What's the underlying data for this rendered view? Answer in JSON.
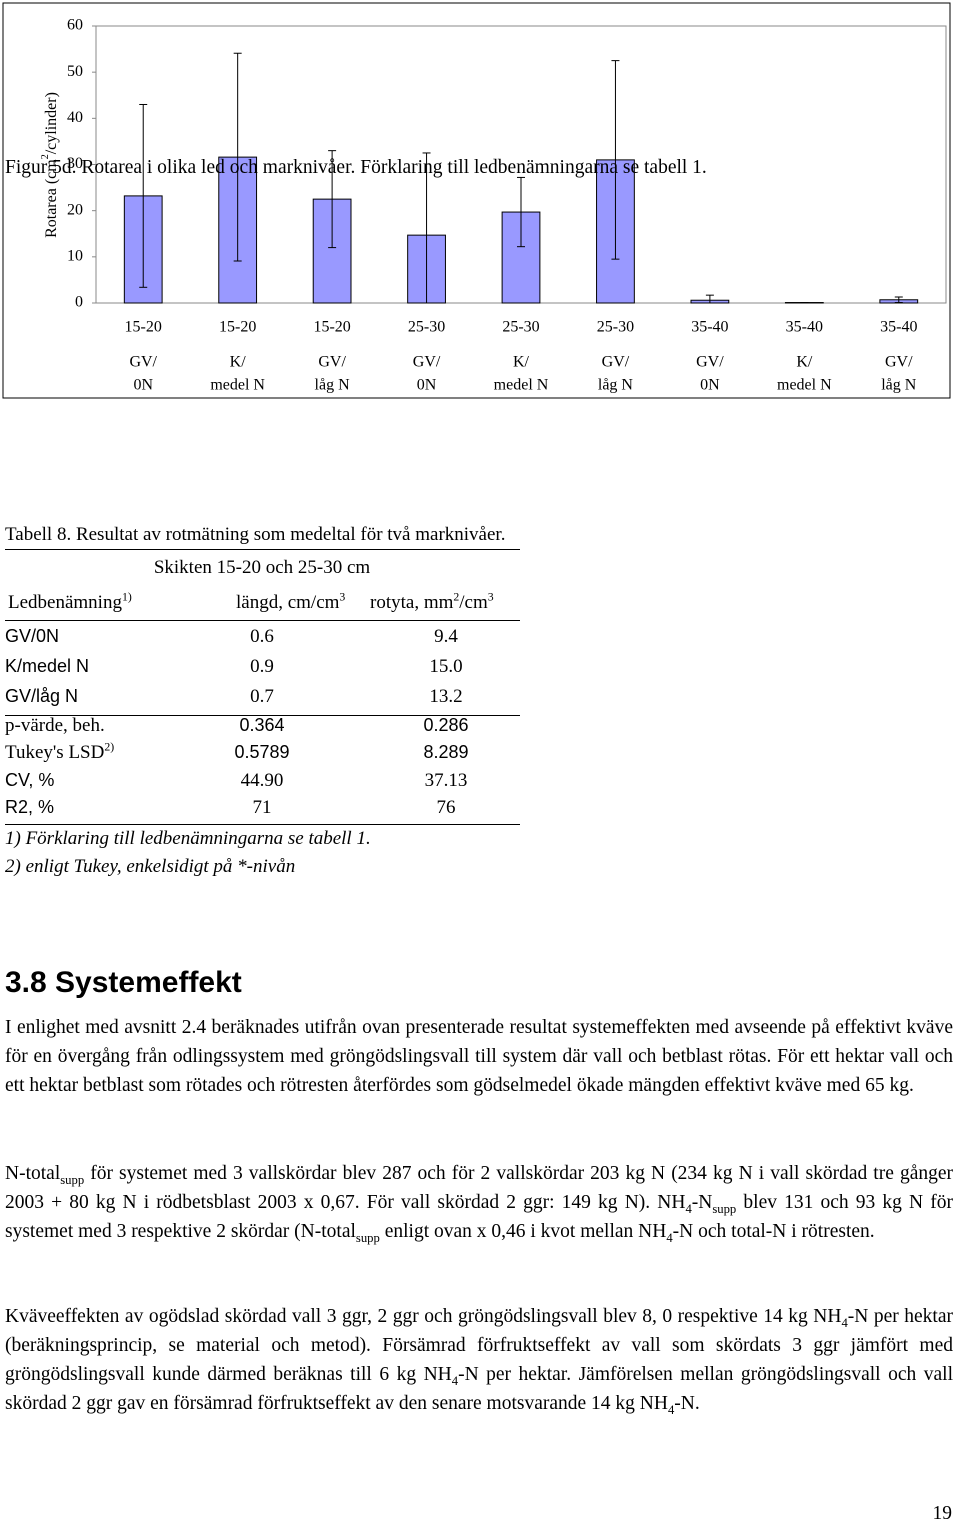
{
  "chart_data": {
    "type": "bar",
    "y_label": [
      "Rotarea (cm",
      {
        "sup": "2"
      },
      "/cylinder)"
    ],
    "categories": [
      [
        "15-20",
        "GV/",
        "0N"
      ],
      [
        "15-20",
        "K/",
        "medel N"
      ],
      [
        "15-20",
        "GV/",
        "låg N"
      ],
      [
        "25-30",
        "GV/",
        "0N"
      ],
      [
        "25-30",
        "K/",
        "medel N"
      ],
      [
        "25-30",
        "GV/",
        "låg N"
      ],
      [
        "35-40",
        "GV/",
        "0N"
      ],
      [
        "35-40",
        "K/",
        "medel N"
      ],
      [
        "35-40",
        "GV/",
        "låg N"
      ]
    ],
    "values": [
      23.2,
      31.6,
      22.5,
      14.7,
      19.7,
      31.0,
      0.6,
      0.1,
      0.7
    ],
    "errors": [
      19.8,
      22.5,
      10.5,
      17.8,
      7.5,
      21.5,
      1.1,
      0,
      0.6
    ],
    "color": "#9999ff",
    "ylim": [
      0,
      60
    ],
    "yticks": [
      0,
      10,
      20,
      30,
      40,
      50,
      60
    ],
    "grid": false
  },
  "caption": "Figur 5d. Rotarea i olika led och marknivåer. Förklaring till ledbenämningarna se tabell 1.",
  "table": {
    "title": "Tabell 8. Resultat av rotmätning som medeltal för två marknivåer.",
    "group_header": "Skikten 15-20 och 25-30 cm",
    "header": [
      [
        "Ledbenämning",
        {
          "sup": "1)"
        }
      ],
      [
        "längd, cm/cm",
        {
          "sup": "3"
        }
      ],
      [
        "rotyta, mm",
        {
          "sup": "2"
        },
        "/cm",
        {
          "sup": "3"
        }
      ]
    ],
    "rows": [
      [
        "GV/0N",
        "0.6",
        "9.4"
      ],
      [
        "K/medel N",
        "0.9",
        "15.0"
      ],
      [
        "GV/låg N",
        "0.7",
        "13.2"
      ],
      [
        "p-värde, beh.",
        "0.364",
        "0.286"
      ],
      [
        [
          "Tukey's LSD",
          {
            "sup": "2)"
          }
        ],
        "0.5789",
        "8.289"
      ],
      [
        "CV, %",
        "44.90",
        "37.13"
      ],
      [
        "R2, %",
        "71",
        "76"
      ]
    ],
    "notes": [
      "1) Förklaring till ledbenämningarna se tabell 1.",
      "2) enligt Tukey, enkelsidigt på *-nivån"
    ]
  },
  "heading": "3.8 Systemeffekt",
  "paragraphs": [
    [
      "I enlighet med avsnitt 2.4 beräknades utifrån ovan presenterade resultat systemeffekten med avseende på effektivt kväve för en övergång från odlingssystem med gröngödslingsvall till system där vall och betblast rötas. För ett hektar vall och ett hektar betblast som rötades och rötresten återfördes som gödselmedel ökade mängden effektivt kväve med  65 kg."
    ],
    [
      "N-total",
      {
        "sub": "supp"
      },
      " för systemet med 3 vallskördar blev 287 och för 2 vallskördar 203 kg N (234 kg N i vall skördad tre gånger 2003 + 80 kg N i rödbetsblast 2003 x 0,67. För vall skördad 2 ggr: 149 kg N). NH",
      {
        "sub": "4"
      },
      "-N",
      {
        "sub": "supp"
      },
      " blev 131 och 93 kg N för systemet med 3 respektive 2 skördar (N-total",
      {
        "sub": "supp"
      },
      " enligt ovan x 0,46 i kvot mellan NH",
      {
        "sub": "4"
      },
      "-N och total-N i rötresten."
    ],
    [
      "Kväveeffekten av ogödslad skördad vall 3 ggr, 2 ggr och gröngödslingsvall blev 8, 0 respektive 14 kg NH",
      {
        "sub": "4"
      },
      "-N per hektar (beräkningsprincip, se material och metod). Försämrad förfruktseffekt av vall som skördats 3 ggr jämfört med gröngödslingsvall kunde därmed beräknas till 6 kg NH",
      {
        "sub": "4"
      },
      "-N per hektar. Jämförelsen mellan gröngödslingsvall och vall skördad 2 ggr gav en försämrad förfruktseffekt av den senare motsvarande 14 kg NH",
      {
        "sub": "4"
      },
      "-N."
    ]
  ],
  "page_number": "19"
}
